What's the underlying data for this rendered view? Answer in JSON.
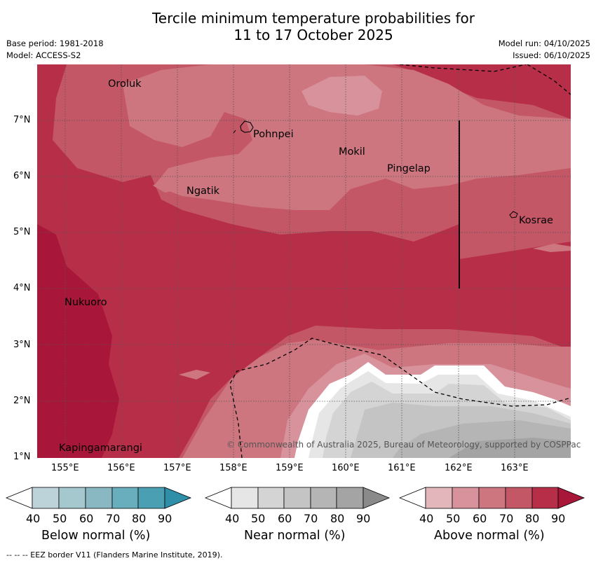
{
  "header": {
    "title_line1": "Tercile minimum temperature probabilities for",
    "title_line2": "11 to 17 October 2025",
    "base_period": "Base period: 1981-2018",
    "model": "Model: ACCESS-S2",
    "model_run": "Model run: 04/10/2025",
    "issued": "Issued: 06/10/2025"
  },
  "map": {
    "y_ticks": [
      "7°N",
      "6°N",
      "5°N",
      "4°N",
      "3°N",
      "2°N",
      "1°N"
    ],
    "x_ticks": [
      "155°E",
      "156°E",
      "157°E",
      "158°E",
      "159°E",
      "160°E",
      "161°E",
      "162°E",
      "163°E"
    ],
    "places": {
      "oroluk": "Oroluk",
      "pohnpei": "Pohnpei",
      "mokil": "Mokil",
      "pingelap": "Pingelap",
      "ngatik": "Ngatik",
      "kosrae": "Kosrae",
      "nukuoro": "Nukuoro",
      "kapingamarangi": "Kapingamarangi"
    },
    "copyright": "© Commonwealth of Australia 2025, Bureau of Meteorology, supported by COSPPac"
  },
  "legend": {
    "ticks": [
      "40",
      "50",
      "60",
      "70",
      "80",
      "90"
    ],
    "below": {
      "title": "Below normal (%)",
      "colors": [
        "#bcd3da",
        "#a5c7ce",
        "#8ab8c2",
        "#69aebd",
        "#4a9fb3",
        "#2f8ea8"
      ]
    },
    "near": {
      "title": "Near normal (%)",
      "colors": [
        "#e6e6e6",
        "#d4d4d4",
        "#c4c4c4",
        "#b5b5b5",
        "#a4a4a4",
        "#8a8a8a"
      ]
    },
    "above": {
      "title": "Above normal (%)",
      "colors": [
        "#e3b6bc",
        "#d8929c",
        "#cd7680",
        "#c45766",
        "#b72e48",
        "#a8173a"
      ]
    }
  },
  "footer": {
    "eez_note": "--  --  -- EEZ border V11 (Flanders Marine Institute, 2019)."
  }
}
